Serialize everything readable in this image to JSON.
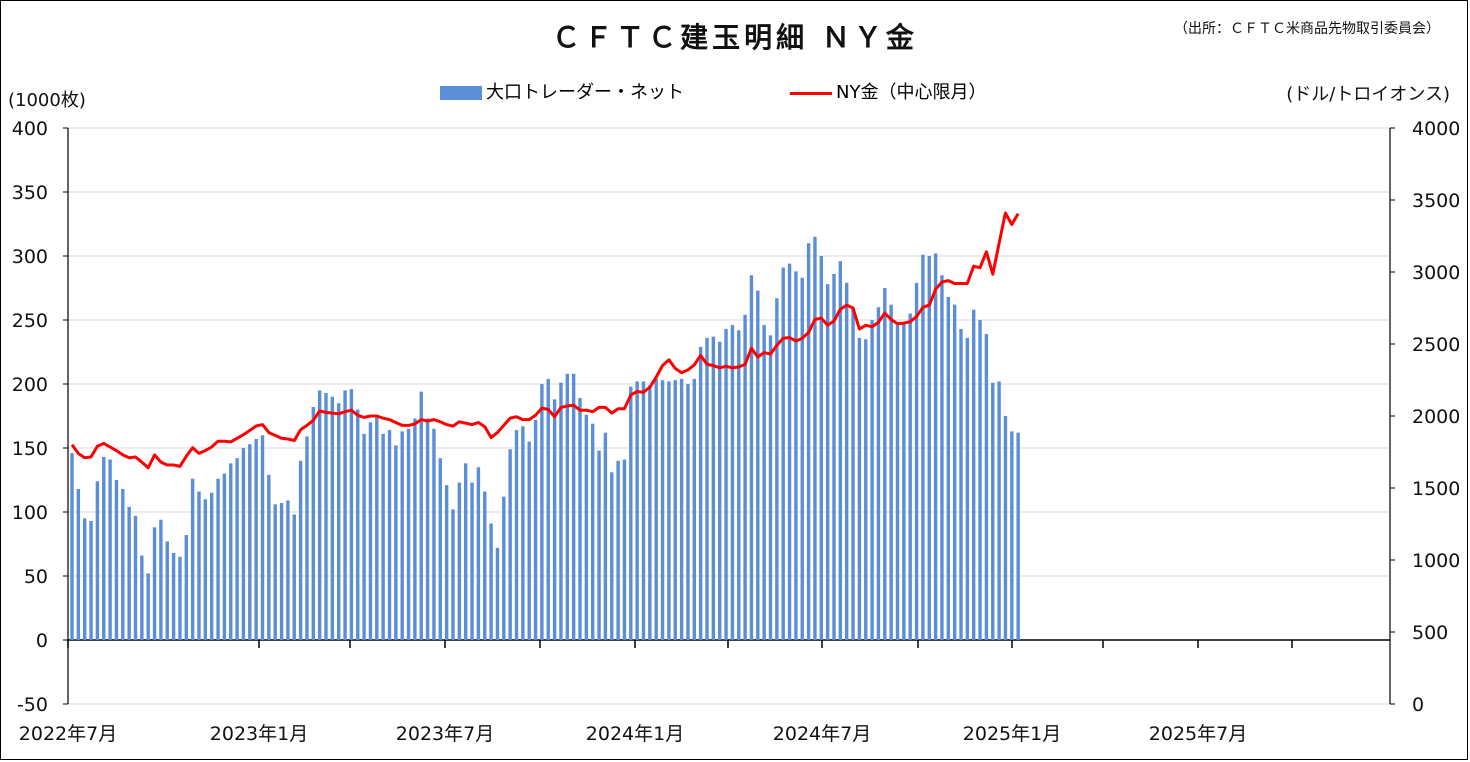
{
  "chart_data": {
    "type": "bar+line",
    "title": "ＣＦＴＣ建玉明細 ＮＹ金",
    "source_note": "（出所：ＣＦＴＣ米商品先物取引委員会）",
    "y_left_unit": "(1000枚)",
    "y_right_unit": "(ドル/トロイオンス)",
    "y_left_ticks": [
      "400",
      "350",
      "300",
      "250",
      "200",
      "150",
      "100",
      "50",
      "0",
      "-50"
    ],
    "y_right_ticks": [
      "4000",
      "3500",
      "3000",
      "2500",
      "2000",
      "1500",
      "1000",
      "500",
      "0"
    ],
    "ylim_left": [
      -50,
      400
    ],
    "ylim_right": [
      0,
      4000
    ],
    "x_tick_labels": [
      "2022年7月",
      "2023年1月",
      "2023年7月",
      "2024年1月",
      "2024年7月",
      "2025年1月",
      "2025年7月"
    ],
    "grid": "horizontal",
    "legend_position": "top-center",
    "colors": {
      "bars": "#5B8ED6",
      "line": "#FF0000",
      "grid": "#D9D9D9",
      "axis": "#000000"
    },
    "series": [
      {
        "name": "大口トレーダー・ネット",
        "type": "bar",
        "axis": "left",
        "values": [
          146,
          118,
          95,
          93,
          124,
          143,
          141,
          125,
          118,
          104,
          97,
          66,
          52,
          88,
          94,
          77,
          68,
          65,
          82,
          126,
          116,
          110,
          115,
          126,
          130,
          138,
          142,
          150,
          153,
          157,
          160,
          129,
          106,
          107,
          109,
          98,
          140,
          159,
          182,
          195,
          193,
          190,
          185,
          195,
          196,
          180,
          161,
          170,
          176,
          161,
          164,
          152,
          163,
          165,
          173,
          194,
          173,
          165,
          142,
          121,
          102,
          123,
          138,
          123,
          135,
          116,
          91,
          72,
          112,
          149,
          164,
          167,
          155,
          172,
          200,
          204,
          188,
          201,
          208,
          208,
          189,
          176,
          169,
          148,
          162,
          131,
          140,
          141,
          198,
          202,
          202,
          199,
          204,
          203,
          202,
          203,
          204,
          200,
          204,
          229,
          236,
          237,
          233,
          243,
          246,
          242,
          254,
          285,
          273,
          246,
          238,
          267,
          291,
          294,
          288,
          283,
          310,
          315,
          300,
          278,
          286,
          296,
          279,
          260,
          236,
          235,
          250,
          260,
          275,
          262,
          246,
          247,
          255,
          279,
          301,
          300,
          302,
          285,
          268,
          262,
          243,
          236,
          258,
          250,
          239,
          201,
          202,
          175,
          163,
          162
        ]
      },
      {
        "name": "NY金（中心限月）",
        "type": "line",
        "axis": "right",
        "values": [
          1800,
          1740,
          1710,
          1715,
          1790,
          1810,
          1785,
          1760,
          1730,
          1710,
          1715,
          1680,
          1640,
          1730,
          1680,
          1660,
          1660,
          1650,
          1720,
          1780,
          1740,
          1760,
          1785,
          1825,
          1825,
          1820,
          1845,
          1870,
          1900,
          1930,
          1940,
          1885,
          1865,
          1845,
          1840,
          1830,
          1905,
          1935,
          1970,
          2035,
          2025,
          2020,
          2015,
          2030,
          2040,
          2005,
          1990,
          2000,
          2000,
          1985,
          1975,
          1955,
          1935,
          1935,
          1945,
          1975,
          1965,
          1975,
          1960,
          1940,
          1930,
          1960,
          1950,
          1940,
          1955,
          1925,
          1850,
          1885,
          1935,
          1985,
          1995,
          1975,
          1975,
          2005,
          2055,
          2045,
          1995,
          2060,
          2070,
          2075,
          2040,
          2040,
          2030,
          2060,
          2060,
          2020,
          2050,
          2050,
          2145,
          2170,
          2165,
          2200,
          2270,
          2350,
          2390,
          2330,
          2300,
          2320,
          2355,
          2420,
          2360,
          2350,
          2335,
          2345,
          2335,
          2340,
          2360,
          2470,
          2410,
          2440,
          2430,
          2490,
          2540,
          2545,
          2520,
          2540,
          2580,
          2670,
          2680,
          2630,
          2660,
          2740,
          2770,
          2750,
          2605,
          2630,
          2620,
          2650,
          2715,
          2670,
          2640,
          2645,
          2655,
          2690,
          2755,
          2770,
          2880,
          2930,
          2940,
          2920,
          2920,
          2920,
          3040,
          3030,
          3140,
          2985,
          3200,
          3410,
          3330,
          3405
        ]
      }
    ]
  }
}
